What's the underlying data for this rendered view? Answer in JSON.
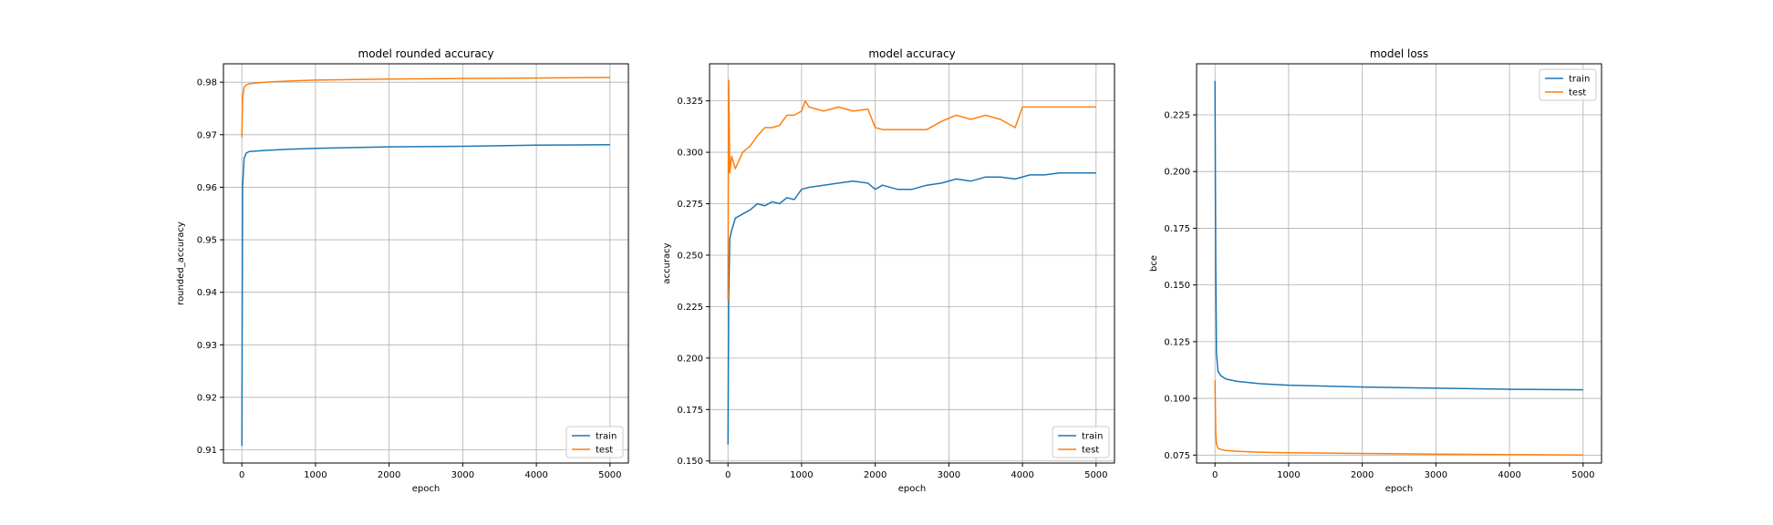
{
  "colors": {
    "train": "#1f77b4",
    "test": "#ff7f0e",
    "grid": "#b0b0b0"
  },
  "chart_data": [
    {
      "type": "line",
      "title": "model rounded accuracy",
      "xlabel": "epoch",
      "ylabel": "rounded_accuracy",
      "xlim": [
        -250,
        5250
      ],
      "ylim": [
        0.9075,
        0.9835
      ],
      "xticks": [
        "0",
        "1000",
        "2000",
        "3000",
        "4000",
        "5000"
      ],
      "yticks": [
        "0.91",
        "0.92",
        "0.93",
        "0.94",
        "0.95",
        "0.96",
        "0.97",
        "0.98"
      ],
      "grid": true,
      "legend_position": "lower right",
      "series": [
        {
          "name": "train",
          "x": [
            0,
            10,
            30,
            60,
            100,
            300,
            600,
            1000,
            2000,
            3000,
            4000,
            5000
          ],
          "y": [
            0.9108,
            0.96,
            0.9655,
            0.9665,
            0.9668,
            0.967,
            0.9672,
            0.9674,
            0.9677,
            0.9678,
            0.968,
            0.9681
          ]
        },
        {
          "name": "test",
          "x": [
            0,
            10,
            30,
            60,
            100,
            300,
            600,
            1000,
            2000,
            3000,
            4000,
            5000
          ],
          "y": [
            0.9695,
            0.977,
            0.979,
            0.9795,
            0.9797,
            0.98,
            0.9802,
            0.9804,
            0.9806,
            0.9807,
            0.9808,
            0.9809
          ]
        }
      ]
    },
    {
      "type": "line",
      "title": "model accuracy",
      "xlabel": "epoch",
      "ylabel": "accuracy",
      "xlim": [
        -250,
        5250
      ],
      "ylim": [
        0.149,
        0.343
      ],
      "xticks": [
        "0",
        "1000",
        "2000",
        "3000",
        "4000",
        "5000"
      ],
      "yticks": [
        "0.150",
        "0.175",
        "0.200",
        "0.225",
        "0.250",
        "0.275",
        "0.300",
        "0.325"
      ],
      "grid": true,
      "legend_position": "lower right",
      "series": [
        {
          "name": "train",
          "x": [
            0,
            10,
            25,
            50,
            100,
            200,
            300,
            400,
            500,
            600,
            700,
            800,
            900,
            1000,
            1100,
            1300,
            1500,
            1700,
            1900,
            2000,
            2100,
            2300,
            2500,
            2700,
            2900,
            3100,
            3300,
            3500,
            3700,
            3900,
            4100,
            4300,
            4500,
            4700,
            5000
          ],
          "y": [
            0.158,
            0.23,
            0.258,
            0.262,
            0.268,
            0.27,
            0.272,
            0.275,
            0.274,
            0.276,
            0.275,
            0.278,
            0.277,
            0.282,
            0.283,
            0.284,
            0.285,
            0.286,
            0.285,
            0.282,
            0.284,
            0.282,
            0.282,
            0.284,
            0.285,
            0.287,
            0.286,
            0.288,
            0.288,
            0.287,
            0.289,
            0.289,
            0.29,
            0.29,
            0.29
          ]
        },
        {
          "name": "test",
          "x": [
            0,
            10,
            25,
            50,
            100,
            200,
            300,
            400,
            500,
            600,
            700,
            800,
            900,
            1000,
            1050,
            1100,
            1300,
            1500,
            1700,
            1900,
            2000,
            2100,
            2300,
            2500,
            2700,
            2900,
            3100,
            3300,
            3500,
            3700,
            3900,
            4000,
            4100,
            4300,
            4600,
            5000
          ],
          "y": [
            0.228,
            0.335,
            0.29,
            0.298,
            0.292,
            0.3,
            0.303,
            0.308,
            0.312,
            0.312,
            0.313,
            0.318,
            0.318,
            0.32,
            0.325,
            0.322,
            0.32,
            0.322,
            0.32,
            0.321,
            0.312,
            0.311,
            0.311,
            0.311,
            0.311,
            0.315,
            0.318,
            0.316,
            0.318,
            0.316,
            0.312,
            0.322,
            0.322,
            0.322,
            0.322,
            0.322
          ]
        }
      ]
    },
    {
      "type": "line",
      "title": "model loss",
      "xlabel": "epoch",
      "ylabel": "bce",
      "xlim": [
        -250,
        5250
      ],
      "ylim": [
        0.0715,
        0.2475
      ],
      "xticks": [
        "0",
        "1000",
        "2000",
        "3000",
        "4000",
        "5000"
      ],
      "yticks": [
        "0.075",
        "0.100",
        "0.125",
        "0.150",
        "0.175",
        "0.200",
        "0.225"
      ],
      "grid": true,
      "legend_position": "upper right",
      "series": [
        {
          "name": "train",
          "x": [
            0,
            10,
            20,
            40,
            80,
            150,
            300,
            600,
            1000,
            2000,
            3000,
            4000,
            5000
          ],
          "y": [
            0.24,
            0.16,
            0.12,
            0.112,
            0.11,
            0.1085,
            0.1075,
            0.1065,
            0.1058,
            0.105,
            0.1045,
            0.104,
            0.1038
          ]
        },
        {
          "name": "test",
          "x": [
            0,
            10,
            20,
            40,
            80,
            150,
            300,
            600,
            1000,
            2000,
            3000,
            4000,
            5000
          ],
          "y": [
            0.108,
            0.085,
            0.08,
            0.078,
            0.0775,
            0.077,
            0.0767,
            0.0763,
            0.076,
            0.0757,
            0.0754,
            0.0752,
            0.075
          ]
        }
      ]
    }
  ]
}
